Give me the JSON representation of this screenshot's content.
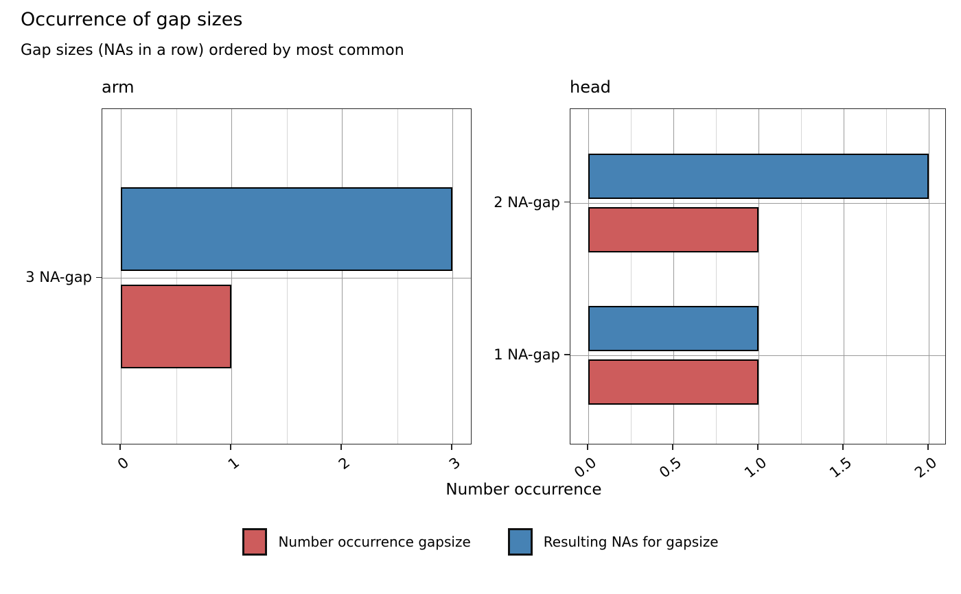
{
  "chart_data": {
    "type": "bar",
    "orientation": "horizontal",
    "title": "Occurrence of gap sizes",
    "subtitle": "Gap sizes (NAs in a row) ordered by most common",
    "xlabel": "Number occurrence",
    "grid": true,
    "legend_position": "bottom",
    "bar_edge_color": "#000000",
    "legend": [
      {
        "label": "Number occurrence gapsize",
        "color": "#CD5C5C"
      },
      {
        "label": "Resulting NAs for gapsize",
        "color": "#4682B4"
      }
    ],
    "facets": [
      {
        "title": "arm",
        "categories": [
          "3 NA-gap"
        ],
        "series": [
          {
            "name": "Resulting NAs for gapsize",
            "color": "#4682B4",
            "values": [
              3
            ]
          },
          {
            "name": "Number occurrence gapsize",
            "color": "#CD5C5C",
            "values": [
              1
            ]
          }
        ],
        "xlim": [
          0,
          3
        ],
        "xticks": [
          0,
          1,
          2,
          3
        ],
        "xtick_labels": [
          "0",
          "1",
          "2",
          "3"
        ],
        "minor_xticks": [
          0.5,
          1.5,
          2.5
        ]
      },
      {
        "title": "head",
        "categories": [
          "2 NA-gap",
          "1 NA-gap"
        ],
        "series": [
          {
            "name": "Resulting NAs for gapsize",
            "color": "#4682B4",
            "values": [
              2,
              1
            ]
          },
          {
            "name": "Number occurrence gapsize",
            "color": "#CD5C5C",
            "values": [
              1,
              1
            ]
          }
        ],
        "xlim": [
          0,
          2
        ],
        "xticks": [
          0.0,
          0.5,
          1.0,
          1.5,
          2.0
        ],
        "xtick_labels": [
          "0.0",
          "0.5",
          "1.0",
          "1.5",
          "2.0"
        ],
        "minor_xticks": [
          0.25,
          0.75,
          1.25,
          1.75
        ]
      }
    ]
  }
}
